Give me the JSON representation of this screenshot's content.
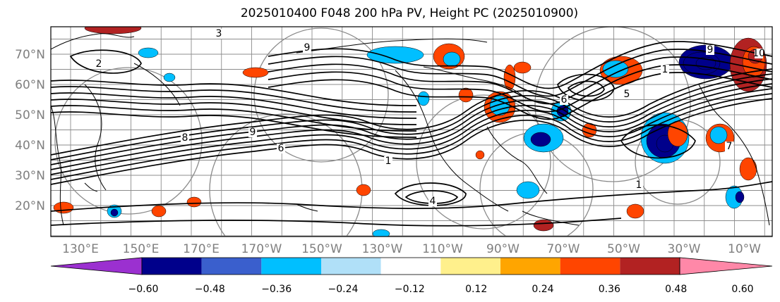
{
  "title": "2025010400 F048 200 hPa PV, Height PC (2025010900)",
  "map": {
    "lat_labels": [
      "70°N",
      "60°N",
      "50°N",
      "40°N",
      "30°N",
      "20°N"
    ],
    "lon_labels": [
      "130°E",
      "150°E",
      "170°E",
      "170°W",
      "150°W",
      "130°W",
      "110°W",
      "90°W",
      "70°W",
      "50°W",
      "30°W",
      "10°W"
    ],
    "contour_labels": [
      "3",
      "2",
      "9",
      "8",
      "6",
      "9",
      "1",
      "7",
      "4",
      "5",
      "6",
      "1",
      "9",
      "1",
      "10"
    ]
  },
  "colorbar": {
    "tick_labels": [
      "−0.60",
      "−0.48",
      "−0.36",
      "−0.24",
      "−0.12",
      "0.12",
      "0.24",
      "0.36",
      "0.48",
      "0.60"
    ],
    "colors": [
      "#9b30d0",
      "#00008b",
      "#3a5fcd",
      "#00bfff",
      "#b0e0f8",
      "#ffffff",
      "#fff08c",
      "#ffa500",
      "#ff4500",
      "#b22222",
      "#ff88a8"
    ]
  },
  "legend_colors": {
    "coast": "#000000",
    "grid": "#8c8c8c",
    "contour": "#000000"
  }
}
